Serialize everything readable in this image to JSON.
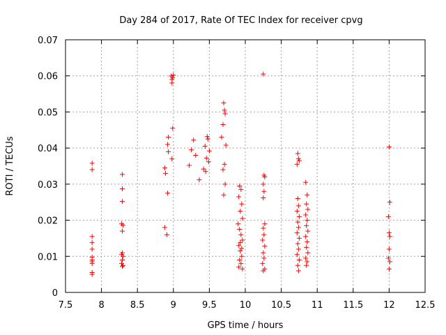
{
  "chart_data": {
    "type": "scatter",
    "title": "Day 284 of 2017, Rate Of TEC Index for receiver cpvg",
    "xlabel": "GPS time / hours",
    "ylabel": "ROTI / TECUs",
    "xlim": [
      7.5,
      12.5
    ],
    "ylim": [
      0,
      0.07
    ],
    "x_ticks": [
      "7.5",
      "8",
      "8.5",
      "9",
      "9.5",
      "10",
      "10.5",
      "11",
      "11.5",
      "12",
      "12.5"
    ],
    "y_ticks": [
      "0",
      "0.01",
      "0.02",
      "0.03",
      "0.04",
      "0.05",
      "0.06",
      "0.07"
    ],
    "x_tick_values": [
      7.5,
      8,
      8.5,
      9,
      9.5,
      10,
      10.5,
      11,
      11.5,
      12,
      12.5
    ],
    "y_tick_values": [
      0,
      0.01,
      0.02,
      0.03,
      0.04,
      0.05,
      0.06,
      0.07
    ],
    "grid": true,
    "marker": "plus",
    "color": "#ff0000",
    "series": [
      {
        "points": [
          [
            7.87,
            0.0358
          ],
          [
            7.87,
            0.034
          ],
          [
            7.87,
            0.0155
          ],
          [
            7.87,
            0.0138
          ],
          [
            7.87,
            0.012
          ],
          [
            7.87,
            0.0098
          ],
          [
            7.87,
            0.009
          ],
          [
            7.87,
            0.0085
          ],
          [
            7.87,
            0.008
          ],
          [
            7.87,
            0.0055
          ],
          [
            7.87,
            0.005
          ],
          [
            8.29,
            0.0327
          ],
          [
            8.29,
            0.0287
          ],
          [
            8.29,
            0.0252
          ],
          [
            8.28,
            0.019
          ],
          [
            8.3,
            0.0186
          ],
          [
            8.29,
            0.017
          ],
          [
            8.29,
            0.011
          ],
          [
            8.28,
            0.0105
          ],
          [
            8.3,
            0.01
          ],
          [
            8.29,
            0.009
          ],
          [
            8.28,
            0.008
          ],
          [
            8.3,
            0.0075
          ],
          [
            8.29,
            0.0072
          ],
          [
            8.88,
            0.0345
          ],
          [
            8.89,
            0.033
          ],
          [
            8.93,
            0.043
          ],
          [
            8.92,
            0.041
          ],
          [
            8.93,
            0.039
          ],
          [
            8.99,
            0.0455
          ],
          [
            8.98,
            0.037
          ],
          [
            8.92,
            0.0275
          ],
          [
            8.88,
            0.018
          ],
          [
            8.91,
            0.016
          ],
          [
            8.97,
            0.06
          ],
          [
            8.98,
            0.059
          ],
          [
            9.0,
            0.0602
          ],
          [
            8.98,
            0.058
          ],
          [
            8.99,
            0.0595
          ],
          [
            9.28,
            0.0422
          ],
          [
            9.25,
            0.0395
          ],
          [
            9.31,
            0.038
          ],
          [
            9.22,
            0.0352
          ],
          [
            9.36,
            0.0312
          ],
          [
            9.47,
            0.0432
          ],
          [
            9.48,
            0.0425
          ],
          [
            9.44,
            0.0405
          ],
          [
            9.5,
            0.0392
          ],
          [
            9.46,
            0.0372
          ],
          [
            9.42,
            0.0342
          ],
          [
            9.49,
            0.0362
          ],
          [
            9.45,
            0.0335
          ],
          [
            9.7,
            0.0525
          ],
          [
            9.71,
            0.0505
          ],
          [
            9.72,
            0.0495
          ],
          [
            9.69,
            0.0465
          ],
          [
            9.67,
            0.043
          ],
          [
            9.73,
            0.0408
          ],
          [
            9.71,
            0.0355
          ],
          [
            9.69,
            0.034
          ],
          [
            9.72,
            0.03
          ],
          [
            9.7,
            0.027
          ],
          [
            9.92,
            0.0295
          ],
          [
            9.94,
            0.0285
          ],
          [
            9.91,
            0.0265
          ],
          [
            9.95,
            0.0245
          ],
          [
            9.93,
            0.0225
          ],
          [
            9.96,
            0.0205
          ],
          [
            9.9,
            0.019
          ],
          [
            9.92,
            0.0175
          ],
          [
            9.94,
            0.016
          ],
          [
            9.96,
            0.0145
          ],
          [
            9.91,
            0.013
          ],
          [
            9.93,
            0.0115
          ],
          [
            9.95,
            0.01
          ],
          [
            9.92,
            0.009
          ],
          [
            9.94,
            0.008
          ],
          [
            9.91,
            0.007
          ],
          [
            9.96,
            0.0065
          ],
          [
            9.93,
            0.0138
          ],
          [
            9.95,
            0.0122
          ],
          [
            10.25,
            0.0605
          ],
          [
            10.26,
            0.0325
          ],
          [
            10.27,
            0.032
          ],
          [
            10.25,
            0.03
          ],
          [
            10.26,
            0.028
          ],
          [
            10.25,
            0.0262
          ],
          [
            10.27,
            0.019
          ],
          [
            10.25,
            0.0178
          ],
          [
            10.26,
            0.016
          ],
          [
            10.24,
            0.0145
          ],
          [
            10.27,
            0.0128
          ],
          [
            10.25,
            0.011
          ],
          [
            10.26,
            0.0095
          ],
          [
            10.24,
            0.008
          ],
          [
            10.27,
            0.0065
          ],
          [
            10.25,
            0.006
          ],
          [
            10.73,
            0.0385
          ],
          [
            10.74,
            0.037
          ],
          [
            10.72,
            0.0355
          ],
          [
            10.75,
            0.0365
          ],
          [
            10.73,
            0.026
          ],
          [
            10.74,
            0.024
          ],
          [
            10.72,
            0.0225
          ],
          [
            10.75,
            0.021
          ],
          [
            10.73,
            0.0195
          ],
          [
            10.74,
            0.018
          ],
          [
            10.72,
            0.0165
          ],
          [
            10.75,
            0.015
          ],
          [
            10.73,
            0.0135
          ],
          [
            10.74,
            0.012
          ],
          [
            10.72,
            0.0105
          ],
          [
            10.75,
            0.009
          ],
          [
            10.73,
            0.0075
          ],
          [
            10.74,
            0.006
          ],
          [
            10.84,
            0.0305
          ],
          [
            10.86,
            0.027
          ],
          [
            10.85,
            0.0245
          ],
          [
            10.87,
            0.023
          ],
          [
            10.84,
            0.0215
          ],
          [
            10.86,
            0.02
          ],
          [
            10.85,
            0.0185
          ],
          [
            10.87,
            0.017
          ],
          [
            10.84,
            0.0155
          ],
          [
            10.86,
            0.014
          ],
          [
            10.85,
            0.0125
          ],
          [
            10.87,
            0.011
          ],
          [
            10.84,
            0.0095
          ],
          [
            10.86,
            0.0085
          ],
          [
            10.85,
            0.0075
          ],
          [
            12.0,
            0.0403
          ],
          [
            12.01,
            0.025
          ],
          [
            11.99,
            0.021
          ],
          [
            12.0,
            0.0165
          ],
          [
            12.01,
            0.0155
          ],
          [
            12.0,
            0.012
          ],
          [
            11.99,
            0.0095
          ],
          [
            12.01,
            0.0085
          ],
          [
            12.0,
            0.0065
          ]
        ]
      }
    ]
  }
}
